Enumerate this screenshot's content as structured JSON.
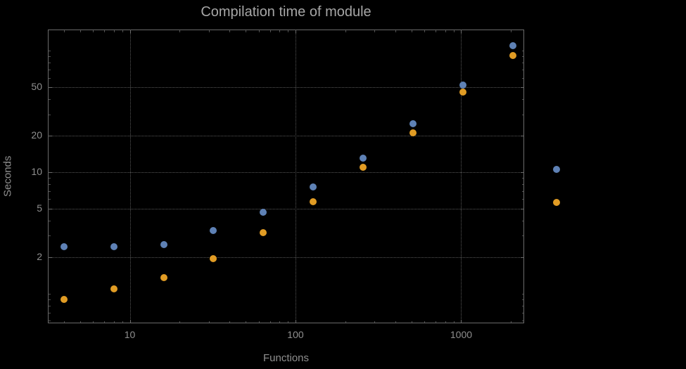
{
  "chart_data": {
    "type": "scatter",
    "title": "Compilation time of module",
    "xlabel": "Functions",
    "ylabel": "Seconds",
    "x_scale": "log",
    "y_scale": "log",
    "xlim": [
      3.2,
      2400
    ],
    "ylim": [
      0.57,
      150
    ],
    "grid": "dotted lines at labeled major ticks",
    "x": [
      4,
      8,
      16,
      32,
      64,
      128,
      256,
      512,
      1024,
      2048
    ],
    "series": [
      {
        "name": "blue",
        "color": "#5e81b5",
        "values": [
          2.45,
          2.45,
          2.55,
          3.3,
          4.7,
          7.6,
          13,
          25,
          52,
          110
        ]
      },
      {
        "name": "orange",
        "color": "#e19c24",
        "values": [
          0.9,
          1.1,
          1.35,
          1.95,
          3.2,
          5.7,
          11,
          21,
          46,
          92
        ]
      }
    ],
    "x_ticks": {
      "values": [
        10,
        100,
        1000
      ],
      "labels": [
        "10",
        "100",
        "1000"
      ]
    },
    "y_ticks": {
      "values": [
        2,
        5,
        10,
        20,
        50
      ],
      "labels": [
        "2",
        "5",
        "10",
        "20",
        "50"
      ]
    },
    "x_minor_ticks": [
      4,
      5,
      6,
      7,
      8,
      9,
      20,
      30,
      40,
      50,
      60,
      70,
      80,
      90,
      200,
      300,
      400,
      500,
      600,
      700,
      800,
      900,
      2000
    ],
    "y_minor_ticks": [
      0.6,
      0.7,
      0.8,
      0.9,
      1,
      3,
      4,
      6,
      7,
      8,
      9,
      30,
      40,
      60,
      70,
      80,
      90,
      100
    ],
    "legend": {
      "position": "right-outside",
      "entries": [
        {
          "color": "#5e81b5"
        },
        {
          "color": "#e19c24"
        }
      ]
    },
    "colors": {
      "background": "#000000",
      "frame": "#6b6b6b",
      "grid": "#585858",
      "text": "#8f8f8f",
      "title": "#a6a6a6"
    }
  }
}
